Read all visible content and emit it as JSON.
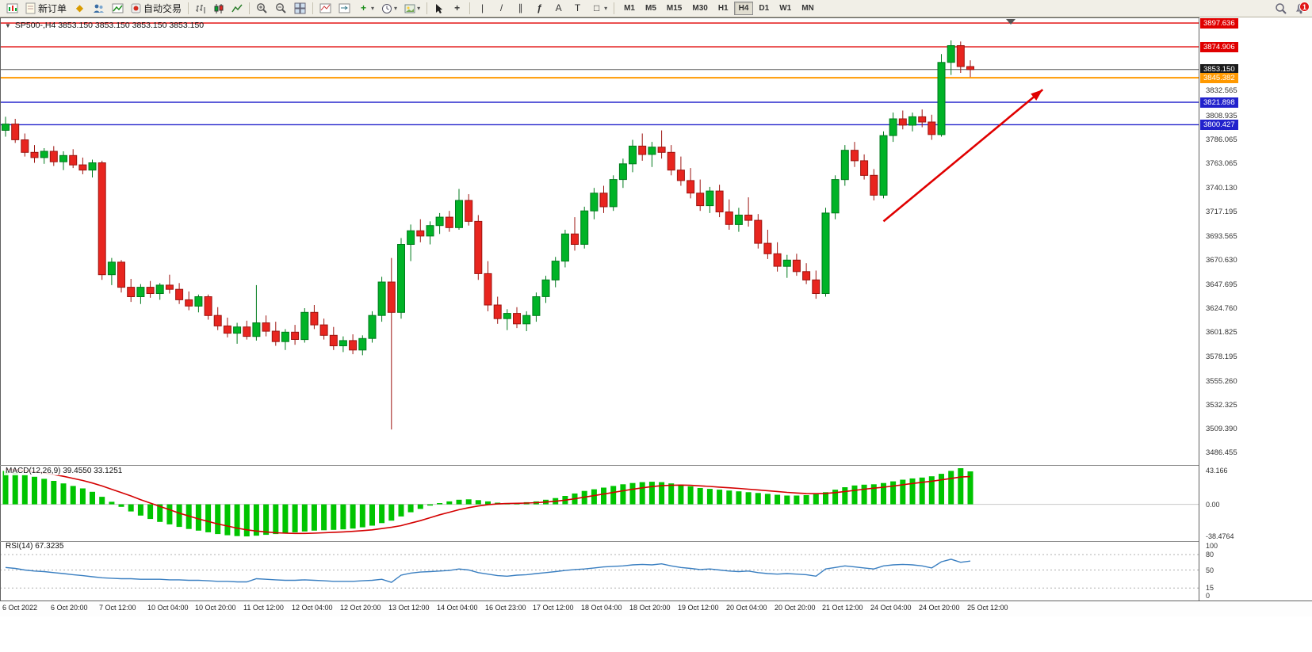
{
  "toolbar": {
    "new_order": "新订单",
    "autotrading": "自动交易",
    "timeframes": [
      "M1",
      "M5",
      "M15",
      "M30",
      "H1",
      "H4",
      "D1",
      "W1",
      "MN"
    ],
    "active_timeframe": "H4",
    "notification_count": "1"
  },
  "icons": {
    "metaquotes": "◆",
    "crosshair": "+",
    "vline": "|",
    "trendline": "/",
    "channel": "∥",
    "fibonacci": "ƒ",
    "text": "A",
    "label": "T",
    "shapes": "□",
    "dropdown": "▾",
    "collapse": "▼",
    "plus": "+"
  },
  "chart": {
    "header": "SP500-,H4 3853.150 3853.150 3853.150 3853.150"
  },
  "chart_data": {
    "type": "candlestick",
    "symbol": "SP500-",
    "timeframe": "H4",
    "current_price": "3853.150",
    "x_label_step": 5,
    "x_labels": [
      "6 Oct 2022",
      "6 Oct 20:00",
      "7 Oct 12:00",
      "10 Oct 04:00",
      "10 Oct 20:00",
      "11 Oct 12:00",
      "12 Oct 04:00",
      "12 Oct 20:00",
      "13 Oct 12:00",
      "14 Oct 04:00",
      "16 Oct 23:00",
      "17 Oct 12:00",
      "18 Oct 04:00",
      "18 Oct 20:00",
      "19 Oct 12:00",
      "20 Oct 04:00",
      "20 Oct 20:00",
      "21 Oct 12:00",
      "24 Oct 04:00",
      "24 Oct 20:00",
      "25 Oct 12:00"
    ],
    "price_axis": {
      "range": [
        3475,
        3903
      ],
      "ticks": [
        {
          "label": "3897.636",
          "price": 3897.636,
          "type": "red"
        },
        {
          "label": "3874.906",
          "price": 3874.906,
          "type": "red"
        },
        {
          "label": "3853.150",
          "price": 3853.15,
          "type": "current"
        },
        {
          "label": "3845.382",
          "price": 3845.382,
          "type": "orange"
        },
        {
          "label": "3832.565",
          "price": 3832.565,
          "type": "tick"
        },
        {
          "label": "3821.898",
          "price": 3821.898,
          "type": "blue"
        },
        {
          "label": "3808.935",
          "price": 3808.935,
          "type": "tick"
        },
        {
          "label": "3800.427",
          "price": 3800.427,
          "type": "blue"
        },
        {
          "label": "3786.065",
          "price": 3786.065,
          "type": "tick"
        },
        {
          "label": "3763.065",
          "price": 3763.065,
          "type": "tick"
        },
        {
          "label": "3740.130",
          "price": 3740.13,
          "type": "tick"
        },
        {
          "label": "3717.195",
          "price": 3717.195,
          "type": "tick"
        },
        {
          "label": "3693.565",
          "price": 3693.565,
          "type": "tick"
        },
        {
          "label": "3670.630",
          "price": 3670.63,
          "type": "tick"
        },
        {
          "label": "3647.695",
          "price": 3647.695,
          "type": "tick"
        },
        {
          "label": "3624.760",
          "price": 3624.76,
          "type": "tick"
        },
        {
          "label": "3601.825",
          "price": 3601.825,
          "type": "tick"
        },
        {
          "label": "3578.195",
          "price": 3578.195,
          "type": "tick"
        },
        {
          "label": "3555.260",
          "price": 3555.26,
          "type": "tick"
        },
        {
          "label": "3532.325",
          "price": 3532.325,
          "type": "tick"
        },
        {
          "label": "3509.390",
          "price": 3509.39,
          "type": "tick"
        },
        {
          "label": "3486.455",
          "price": 3486.455,
          "type": "tick"
        }
      ]
    },
    "candles": [
      [
        3795,
        3808,
        3789,
        3801
      ],
      [
        3801,
        3806,
        3783,
        3786
      ],
      [
        3786,
        3792,
        3770,
        3774
      ],
      [
        3774,
        3781,
        3764,
        3769
      ],
      [
        3769,
        3778,
        3763,
        3775
      ],
      [
        3775,
        3780,
        3761,
        3765
      ],
      [
        3765,
        3775,
        3757,
        3771
      ],
      [
        3771,
        3777,
        3759,
        3762
      ],
      [
        3762,
        3769,
        3753,
        3757
      ],
      [
        3757,
        3767,
        3750,
        3764
      ],
      [
        3764,
        3766,
        3652,
        3657
      ],
      [
        3657,
        3673,
        3647,
        3669
      ],
      [
        3669,
        3671,
        3640,
        3645
      ],
      [
        3645,
        3653,
        3631,
        3636
      ],
      [
        3636,
        3648,
        3629,
        3645
      ],
      [
        3645,
        3651,
        3635,
        3639
      ],
      [
        3639,
        3649,
        3633,
        3647
      ],
      [
        3647,
        3657,
        3639,
        3643
      ],
      [
        3643,
        3649,
        3629,
        3633
      ],
      [
        3633,
        3641,
        3623,
        3627
      ],
      [
        3627,
        3638,
        3621,
        3636
      ],
      [
        3636,
        3638,
        3614,
        3618
      ],
      [
        3618,
        3626,
        3604,
        3608
      ],
      [
        3608,
        3616,
        3597,
        3601
      ],
      [
        3601,
        3611,
        3591,
        3607
      ],
      [
        3607,
        3613,
        3595,
        3598
      ],
      [
        3598,
        3647,
        3594,
        3611
      ],
      [
        3611,
        3618,
        3598,
        3603
      ],
      [
        3603,
        3612,
        3589,
        3593
      ],
      [
        3593,
        3605,
        3585,
        3602
      ],
      [
        3602,
        3609,
        3590,
        3595
      ],
      [
        3595,
        3625,
        3592,
        3621
      ],
      [
        3621,
        3628,
        3605,
        3609
      ],
      [
        3609,
        3615,
        3595,
        3599
      ],
      [
        3599,
        3607,
        3585,
        3589
      ],
      [
        3589,
        3598,
        3583,
        3594
      ],
      [
        3594,
        3600,
        3581,
        3585
      ],
      [
        3585,
        3599,
        3580,
        3596
      ],
      [
        3596,
        3622,
        3592,
        3618
      ],
      [
        3618,
        3655,
        3612,
        3650
      ],
      [
        3650,
        3673,
        3509,
        3621
      ],
      [
        3621,
        3692,
        3615,
        3686
      ],
      [
        3686,
        3705,
        3670,
        3699
      ],
      [
        3699,
        3710,
        3688,
        3694
      ],
      [
        3694,
        3708,
        3686,
        3704
      ],
      [
        3704,
        3716,
        3696,
        3712
      ],
      [
        3712,
        3718,
        3698,
        3702
      ],
      [
        3702,
        3739,
        3700,
        3728
      ],
      [
        3728,
        3734,
        3704,
        3708
      ],
      [
        3708,
        3714,
        3652,
        3658
      ],
      [
        3658,
        3670,
        3622,
        3628
      ],
      [
        3628,
        3636,
        3610,
        3615
      ],
      [
        3615,
        3624,
        3604,
        3620
      ],
      [
        3620,
        3626,
        3606,
        3610
      ],
      [
        3610,
        3622,
        3603,
        3618
      ],
      [
        3618,
        3640,
        3612,
        3636
      ],
      [
        3636,
        3656,
        3630,
        3652
      ],
      [
        3652,
        3674,
        3645,
        3670
      ],
      [
        3670,
        3700,
        3664,
        3696
      ],
      [
        3696,
        3712,
        3680,
        3686
      ],
      [
        3686,
        3722,
        3682,
        3718
      ],
      [
        3718,
        3740,
        3710,
        3735
      ],
      [
        3735,
        3742,
        3716,
        3722
      ],
      [
        3722,
        3752,
        3718,
        3748
      ],
      [
        3748,
        3768,
        3740,
        3763
      ],
      [
        3763,
        3786,
        3755,
        3780
      ],
      [
        3780,
        3792,
        3766,
        3772
      ],
      [
        3772,
        3784,
        3760,
        3779
      ],
      [
        3779,
        3795,
        3768,
        3774
      ],
      [
        3774,
        3781,
        3752,
        3757
      ],
      [
        3757,
        3770,
        3742,
        3747
      ],
      [
        3747,
        3759,
        3730,
        3735
      ],
      [
        3735,
        3748,
        3718,
        3723
      ],
      [
        3723,
        3741,
        3716,
        3737
      ],
      [
        3737,
        3743,
        3712,
        3717
      ],
      [
        3717,
        3729,
        3700,
        3705
      ],
      [
        3705,
        3721,
        3698,
        3714
      ],
      [
        3714,
        3731,
        3703,
        3709
      ],
      [
        3709,
        3715,
        3682,
        3687
      ],
      [
        3687,
        3700,
        3672,
        3677
      ],
      [
        3677,
        3688,
        3660,
        3665
      ],
      [
        3665,
        3676,
        3654,
        3671
      ],
      [
        3671,
        3677,
        3656,
        3660
      ],
      [
        3660,
        3668,
        3648,
        3652
      ],
      [
        3652,
        3661,
        3634,
        3639
      ],
      [
        3639,
        3721,
        3636,
        3716
      ],
      [
        3716,
        3752,
        3710,
        3748
      ],
      [
        3748,
        3781,
        3742,
        3776
      ],
      [
        3776,
        3784,
        3760,
        3766
      ],
      [
        3766,
        3772,
        3748,
        3752
      ],
      [
        3752,
        3758,
        3728,
        3733
      ],
      [
        3733,
        3794,
        3730,
        3790
      ],
      [
        3790,
        3812,
        3784,
        3806
      ],
      [
        3806,
        3814,
        3796,
        3800
      ],
      [
        3800,
        3812,
        3794,
        3808
      ],
      [
        3808,
        3815,
        3798,
        3803
      ],
      [
        3803,
        3810,
        3786,
        3791
      ],
      [
        3791,
        3868,
        3789,
        3860
      ],
      [
        3860,
        3881,
        3848,
        3876
      ],
      [
        3876,
        3880,
        3850,
        3856
      ],
      [
        3856,
        3862,
        3846,
        3853.15
      ]
    ],
    "annotations": {
      "trend_arrow": {
        "from": {
          "index": 91,
          "price": 3708
        },
        "to": {
          "index": 107.5,
          "price": 3834
        },
        "color": "#e00000"
      }
    },
    "indicators": [
      {
        "name": "MACD",
        "label": "MACD(12,26,9) 39.4550 33.1251",
        "type": "macd",
        "range": [
          -44,
          47
        ],
        "axis_labels": [
          {
            "label": "43.166",
            "value": 43.166
          },
          {
            "label": "0.00",
            "value": 0
          },
          {
            "label": "-38.4764",
            "value": -38.4764
          }
        ],
        "histogram": [
          40,
          38,
          35.5,
          33,
          30.5,
          28,
          25,
          22,
          19,
          15,
          9,
          3,
          -3,
          -8.5,
          -13.5,
          -17.5,
          -21,
          -24,
          -27,
          -29.5,
          -31.5,
          -33.5,
          -35.5,
          -37,
          -38,
          -38.4,
          -37.5,
          -36.5,
          -35.5,
          -34.5,
          -33.5,
          -32.5,
          -31.5,
          -31,
          -30.5,
          -30,
          -29,
          -27.5,
          -25.5,
          -22.5,
          -19.5,
          -14.5,
          -9.5,
          -5.5,
          -1.5,
          1.5,
          3.5,
          5.5,
          6,
          5,
          3.5,
          2,
          1.5,
          1.5,
          2.5,
          3.5,
          5.5,
          7.5,
          10,
          13,
          16,
          18,
          20,
          22,
          24,
          25.5,
          26.5,
          27,
          26.5,
          25,
          23.5,
          21.5,
          19.5,
          18.5,
          17.5,
          16.5,
          15.5,
          14.5,
          13.5,
          12.5,
          11.5,
          10.5,
          10.5,
          11,
          12,
          14.5,
          17.5,
          20.5,
          22.5,
          23.5,
          24,
          25.5,
          27.5,
          29.5,
          31,
          32,
          33.5,
          36.5,
          40,
          43.166,
          39.455
        ],
        "signal": [
          42,
          41.5,
          40.5,
          39,
          37.5,
          35.5,
          33.5,
          31,
          28.5,
          25.5,
          22,
          18,
          14,
          10,
          5.5,
          1.5,
          -2.5,
          -6.5,
          -10.5,
          -14,
          -17.5,
          -20.5,
          -23.5,
          -26,
          -28.5,
          -30.5,
          -32,
          -33,
          -34,
          -34.5,
          -34.8,
          -34.8,
          -34.5,
          -34,
          -33.5,
          -33,
          -32.3,
          -31.5,
          -30.5,
          -29,
          -27.5,
          -25.5,
          -22.5,
          -19.5,
          -16,
          -12.5,
          -9.5,
          -6.5,
          -4,
          -2,
          -0.5,
          0.5,
          1,
          1.2,
          1.5,
          2,
          2.7,
          3.7,
          5,
          6.6,
          8.5,
          10.4,
          12.3,
          14.2,
          16.2,
          18,
          19.7,
          21.2,
          22.3,
          22.8,
          23,
          22.7,
          22.1,
          21.4,
          20.6,
          19.8,
          19,
          18.1,
          17.2,
          16.3,
          15.3,
          14.3,
          13.5,
          13,
          12.8,
          13.1,
          14,
          15.3,
          16.7,
          18.1,
          19.3,
          20.5,
          21.9,
          23.4,
          24.9,
          26.3,
          27.7,
          29.3,
          31,
          32.7,
          33.125
        ]
      },
      {
        "name": "RSI",
        "label": "RSI(14) 67.3235",
        "type": "line",
        "range": [
          0,
          100
        ],
        "levels": [
          80,
          50,
          15
        ],
        "axis_labels": [
          {
            "label": "100",
            "value": 100
          },
          {
            "label": "80",
            "value": 80
          },
          {
            "label": "50",
            "value": 50
          },
          {
            "label": "15",
            "value": 15
          },
          {
            "label": "0",
            "value": 0
          }
        ],
        "values": [
          55,
          53,
          50,
          48,
          47,
          45,
          43,
          41,
          39,
          37,
          35,
          34,
          33,
          33,
          32,
          32,
          32,
          31,
          31,
          30,
          30,
          29,
          28,
          28,
          27,
          27,
          33,
          32,
          31,
          30,
          30,
          31,
          30,
          29,
          28,
          28,
          28,
          29,
          30,
          32,
          26,
          40,
          44,
          46,
          47,
          48,
          49,
          52,
          50,
          45,
          42,
          39,
          38,
          40,
          41,
          43,
          45,
          47,
          49,
          51,
          52,
          54,
          56,
          57,
          58,
          60,
          61,
          60,
          62,
          58,
          55,
          53,
          51,
          52,
          50,
          48,
          47,
          48,
          45,
          43,
          42,
          43,
          42,
          41,
          38,
          52,
          55,
          58,
          56,
          54,
          52,
          58,
          60,
          61,
          60,
          58,
          54,
          66,
          71,
          65,
          67.3235
        ]
      }
    ],
    "colors": {
      "up": "#00b327",
      "up_stroke": "#007a1c",
      "down": "#e8251f",
      "down_stroke": "#9c1410",
      "macd_hist": "#00c400",
      "macd_signal": "#d40000",
      "rsi": "#3a7fc1",
      "red_line": "#e00000",
      "orange_line": "#ff9900",
      "blue_line": "#2222cc",
      "current_line": "#555555"
    }
  }
}
